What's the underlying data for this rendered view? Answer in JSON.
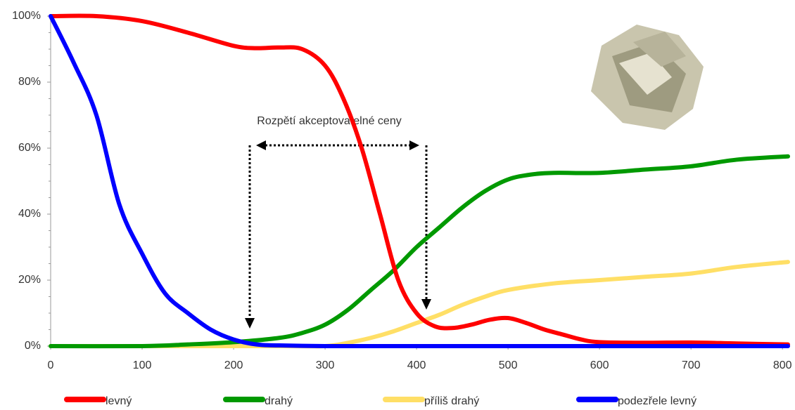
{
  "chart_data": {
    "type": "line",
    "annotation": "Rozpětí akceptovatelné ceny",
    "xlim": [
      0,
      806
    ],
    "xticks": [
      0,
      100,
      200,
      300,
      400,
      500,
      600,
      700,
      800
    ],
    "ylim": [
      0,
      100
    ],
    "yticks": [
      {
        "value": 0,
        "label": "0%"
      },
      {
        "value": 20,
        "label": "20%"
      },
      {
        "value": 40,
        "label": "40%"
      },
      {
        "value": 60,
        "label": "60%"
      },
      {
        "value": 80,
        "label": "80%"
      },
      {
        "value": 100,
        "label": "100%"
      }
    ],
    "legend": "bottom",
    "series": [
      {
        "name": "levný",
        "color": "#ff0000",
        "x": [
          0,
          50,
          100,
          150,
          200,
          225,
          250,
          275,
          300,
          320,
          340,
          360,
          380,
          400,
          420,
          440,
          460,
          480,
          500,
          520,
          540,
          560,
          580,
          600,
          650,
          700,
          750,
          806
        ],
        "values": [
          100,
          100,
          98.5,
          95,
          91,
          90.3,
          90.5,
          90,
          85,
          75,
          60,
          40,
          20,
          10,
          6,
          5.5,
          6.5,
          8,
          8.5,
          7,
          5,
          3.5,
          2,
          1.2,
          1,
          1.1,
          0.8,
          0.5
        ]
      },
      {
        "name": "drahý",
        "color": "#009900",
        "x": [
          0,
          100,
          150,
          200,
          250,
          275,
          300,
          325,
          350,
          375,
          400,
          425,
          450,
          475,
          500,
          525,
          550,
          600,
          650,
          700,
          750,
          806
        ],
        "values": [
          0,
          0,
          0.5,
          1.2,
          2.5,
          4,
          6.5,
          11,
          17,
          23,
          30,
          36,
          42,
          47,
          50.5,
          52,
          52.5,
          52.5,
          53.5,
          54.5,
          56.5,
          57.5
        ]
      },
      {
        "name": "příliš drahý",
        "color": "#ffdf66",
        "x": [
          0,
          250,
          300,
          325,
          350,
          375,
          400,
          425,
          450,
          475,
          500,
          550,
          600,
          650,
          700,
          750,
          806
        ],
        "values": [
          0,
          0,
          0,
          1,
          2.5,
          4.5,
          7,
          9.5,
          12.5,
          15,
          17,
          19,
          20,
          21,
          22,
          24,
          25.5
        ]
      },
      {
        "name": "podezřele levný",
        "color": "#0000ff",
        "x": [
          0,
          25,
          50,
          75,
          100,
          125,
          150,
          175,
          200,
          225,
          250,
          300,
          400,
          500,
          600,
          700,
          806
        ],
        "values": [
          100,
          86,
          70,
          43,
          28,
          16,
          10,
          5,
          2,
          0.5,
          0.2,
          0,
          0,
          0,
          0,
          0,
          0
        ]
      }
    ]
  }
}
